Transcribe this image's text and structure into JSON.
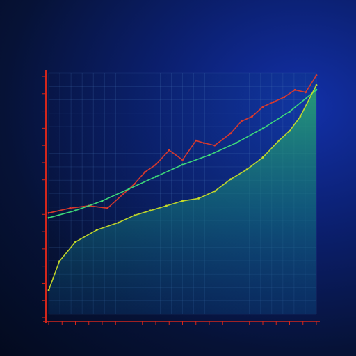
{
  "header": {
    "kicker": "",
    "title": "",
    "subtitle": ""
  },
  "chart_data": {
    "type": "area",
    "title": "",
    "xlabel": "",
    "ylabel": "",
    "legend": "none",
    "grid": true,
    "xlim": [
      0,
      100
    ],
    "ylim": [
      0,
      100
    ],
    "x_ticks": [],
    "y_ticks": [],
    "colors": {
      "red_line": "#e03a2a",
      "light_green_line": "#3fe07a",
      "yellow_line": "#c8dc28",
      "area_top": "#2db86a",
      "area_bottom": "#0b3e74",
      "axis": "#d2261c",
      "grid": "#4a78b8"
    },
    "series": [
      {
        "style": "red_line",
        "x": [
          0,
          8,
          15,
          22,
          28,
          32,
          36,
          40,
          45,
          50,
          55,
          58,
          62,
          68,
          72,
          76,
          80,
          84,
          88,
          92,
          96,
          100
        ],
        "y": [
          42,
          44,
          45,
          44,
          50,
          54,
          59,
          62,
          68,
          64,
          72,
          71,
          70,
          75,
          80,
          82,
          86,
          88,
          90,
          93,
          92,
          99
        ]
      },
      {
        "style": "light_green_line",
        "x": [
          0,
          10,
          20,
          30,
          40,
          50,
          60,
          70,
          80,
          90,
          100
        ],
        "y": [
          40,
          43,
          47,
          52,
          57,
          62,
          66,
          71,
          77,
          84,
          93
        ]
      },
      {
        "style": "yellow_line",
        "x": [
          0,
          4,
          10,
          18,
          26,
          32,
          38,
          44,
          50,
          56,
          62,
          68,
          74,
          80,
          86,
          90,
          94,
          100
        ],
        "y": [
          10,
          22,
          30,
          35,
          38,
          41,
          43,
          45,
          47,
          48,
          51,
          56,
          60,
          65,
          72,
          76,
          82,
          95
        ]
      }
    ]
  }
}
